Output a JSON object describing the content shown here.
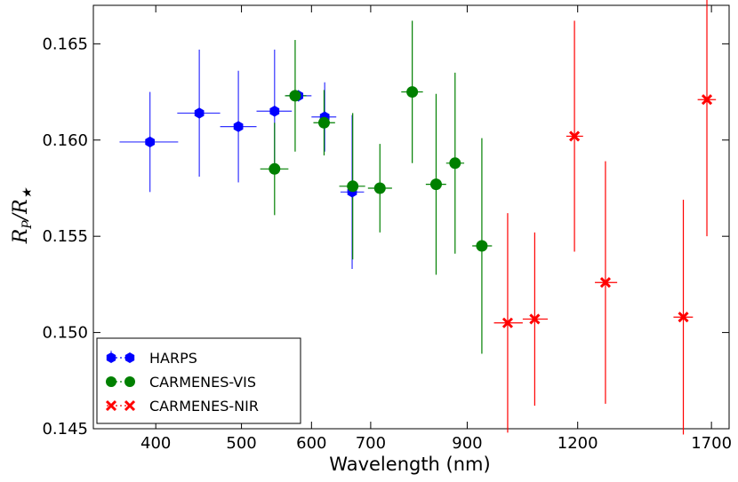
{
  "chart_data": {
    "type": "scatter",
    "xlabel": "Wavelength (nm)",
    "ylabel_main": "R",
    "ylabel_sub_num": "P",
    "ylabel_sub_den": "★",
    "x_scale": "log",
    "xlim": [
      340,
      1780
    ],
    "ylim": [
      0.145,
      0.167
    ],
    "xticks": [
      400,
      500,
      600,
      700,
      900,
      1200,
      1700
    ],
    "xtick_labels": [
      "400",
      "500",
      "600",
      "700",
      "900",
      "1200",
      "1700"
    ],
    "yticks": [
      0.145,
      0.15,
      0.155,
      0.16,
      0.165
    ],
    "ytick_labels": [
      "0.145",
      "0.150",
      "0.155",
      "0.160",
      "0.165"
    ],
    "legend_position": "bottom-left",
    "series": [
      {
        "name": "HARPS",
        "color": "#0000ff",
        "errcolor": "#3333ff",
        "marker": "hexagon",
        "points": [
          {
            "x": 394,
            "y": 0.1599,
            "xlo": 364,
            "xhi": 424,
            "yerr": 0.0026
          },
          {
            "x": 448,
            "y": 0.1614,
            "xlo": 423,
            "xhi": 473,
            "yerr": 0.0033
          },
          {
            "x": 496,
            "y": 0.1607,
            "xlo": 473,
            "xhi": 520,
            "yerr": 0.0029
          },
          {
            "x": 545,
            "y": 0.1615,
            "xlo": 520,
            "xhi": 570,
            "yerr": 0.0032
          },
          {
            "x": 580,
            "y": 0.1623,
            "xlo": 562,
            "xhi": 600,
            "yerr": 0.0003
          },
          {
            "x": 621,
            "y": 0.1612,
            "xlo": 600,
            "xhi": 640,
            "yerr": 0.0018
          },
          {
            "x": 667,
            "y": 0.1573,
            "xlo": 647,
            "xhi": 688,
            "yerr": 0.004
          }
        ]
      },
      {
        "name": "CARMENES-VIS",
        "color": "#008000",
        "errcolor": "#008000",
        "marker": "circle",
        "points": [
          {
            "x": 545,
            "y": 0.1585,
            "xlo": 525,
            "xhi": 565,
            "yerr": 0.0024
          },
          {
            "x": 575,
            "y": 0.1623,
            "xlo": 560,
            "xhi": 592,
            "yerr": 0.0029
          },
          {
            "x": 620,
            "y": 0.1609,
            "xlo": 603,
            "xhi": 638,
            "yerr": 0.0017
          },
          {
            "x": 668,
            "y": 0.1576,
            "xlo": 645,
            "xhi": 690,
            "yerr": 0.0038
          },
          {
            "x": 717,
            "y": 0.1575,
            "xlo": 695,
            "xhi": 740,
            "yerr": 0.0023
          },
          {
            "x": 780,
            "y": 0.1625,
            "xlo": 758,
            "xhi": 802,
            "yerr": 0.0037
          },
          {
            "x": 830,
            "y": 0.1577,
            "xlo": 808,
            "xhi": 852,
            "yerr": 0.0047
          },
          {
            "x": 872,
            "y": 0.1588,
            "xlo": 852,
            "xhi": 893,
            "yerr": 0.0047
          },
          {
            "x": 935,
            "y": 0.1545,
            "xlo": 912,
            "xhi": 960,
            "yerr": 0.0056
          }
        ]
      },
      {
        "name": "CARMENES-NIR",
        "color": "#ff0000",
        "errcolor": "#ff0000",
        "marker": "x",
        "points": [
          {
            "x": 1000,
            "y": 0.1505,
            "xlo": 965,
            "xhi": 1040,
            "yerr": 0.0057
          },
          {
            "x": 1073,
            "y": 0.1507,
            "xlo": 1040,
            "xhi": 1110,
            "yerr": 0.0045
          },
          {
            "x": 1190,
            "y": 0.1602,
            "xlo": 1165,
            "xhi": 1217,
            "yerr": 0.006
          },
          {
            "x": 1290,
            "y": 0.1526,
            "xlo": 1255,
            "xhi": 1330,
            "yerr": 0.0063
          },
          {
            "x": 1580,
            "y": 0.1508,
            "xlo": 1540,
            "xhi": 1620,
            "yerr": 0.0061
          },
          {
            "x": 1680,
            "y": 0.1621,
            "xlo": 1640,
            "xhi": 1720,
            "yerr": 0.0071
          }
        ]
      }
    ]
  }
}
